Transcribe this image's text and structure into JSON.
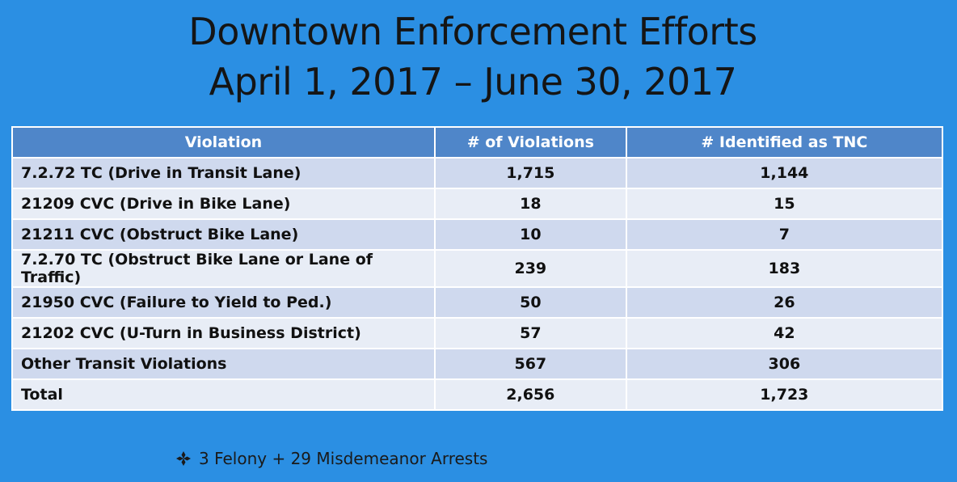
{
  "header": {
    "title_line1": "Downtown Enforcement Efforts",
    "title_line2": "April 1, 2017 – June 30, 2017"
  },
  "table": {
    "columns": [
      "Violation",
      "# of Violations",
      "# Identified as TNC"
    ],
    "rows": [
      [
        "7.2.72 TC (Drive in Transit Lane)",
        "1,715",
        "1,144"
      ],
      [
        "21209 CVC (Drive in Bike Lane)",
        "18",
        "15"
      ],
      [
        "21211 CVC (Obstruct Bike Lane)",
        "10",
        "7"
      ],
      [
        "7.2.70 TC (Obstruct Bike Lane or Lane of Traffic)",
        "239",
        "183"
      ],
      [
        "21950 CVC (Failure to Yield to Ped.)",
        "50",
        "26"
      ],
      [
        "21202 CVC (U-Turn in Business District)",
        "57",
        "42"
      ],
      [
        "Other Transit Violations",
        "567",
        "306"
      ],
      [
        "Total",
        "2,656",
        "1,723"
      ]
    ]
  },
  "note": "3 Felony + 29 Misdemeanor Arrests"
}
